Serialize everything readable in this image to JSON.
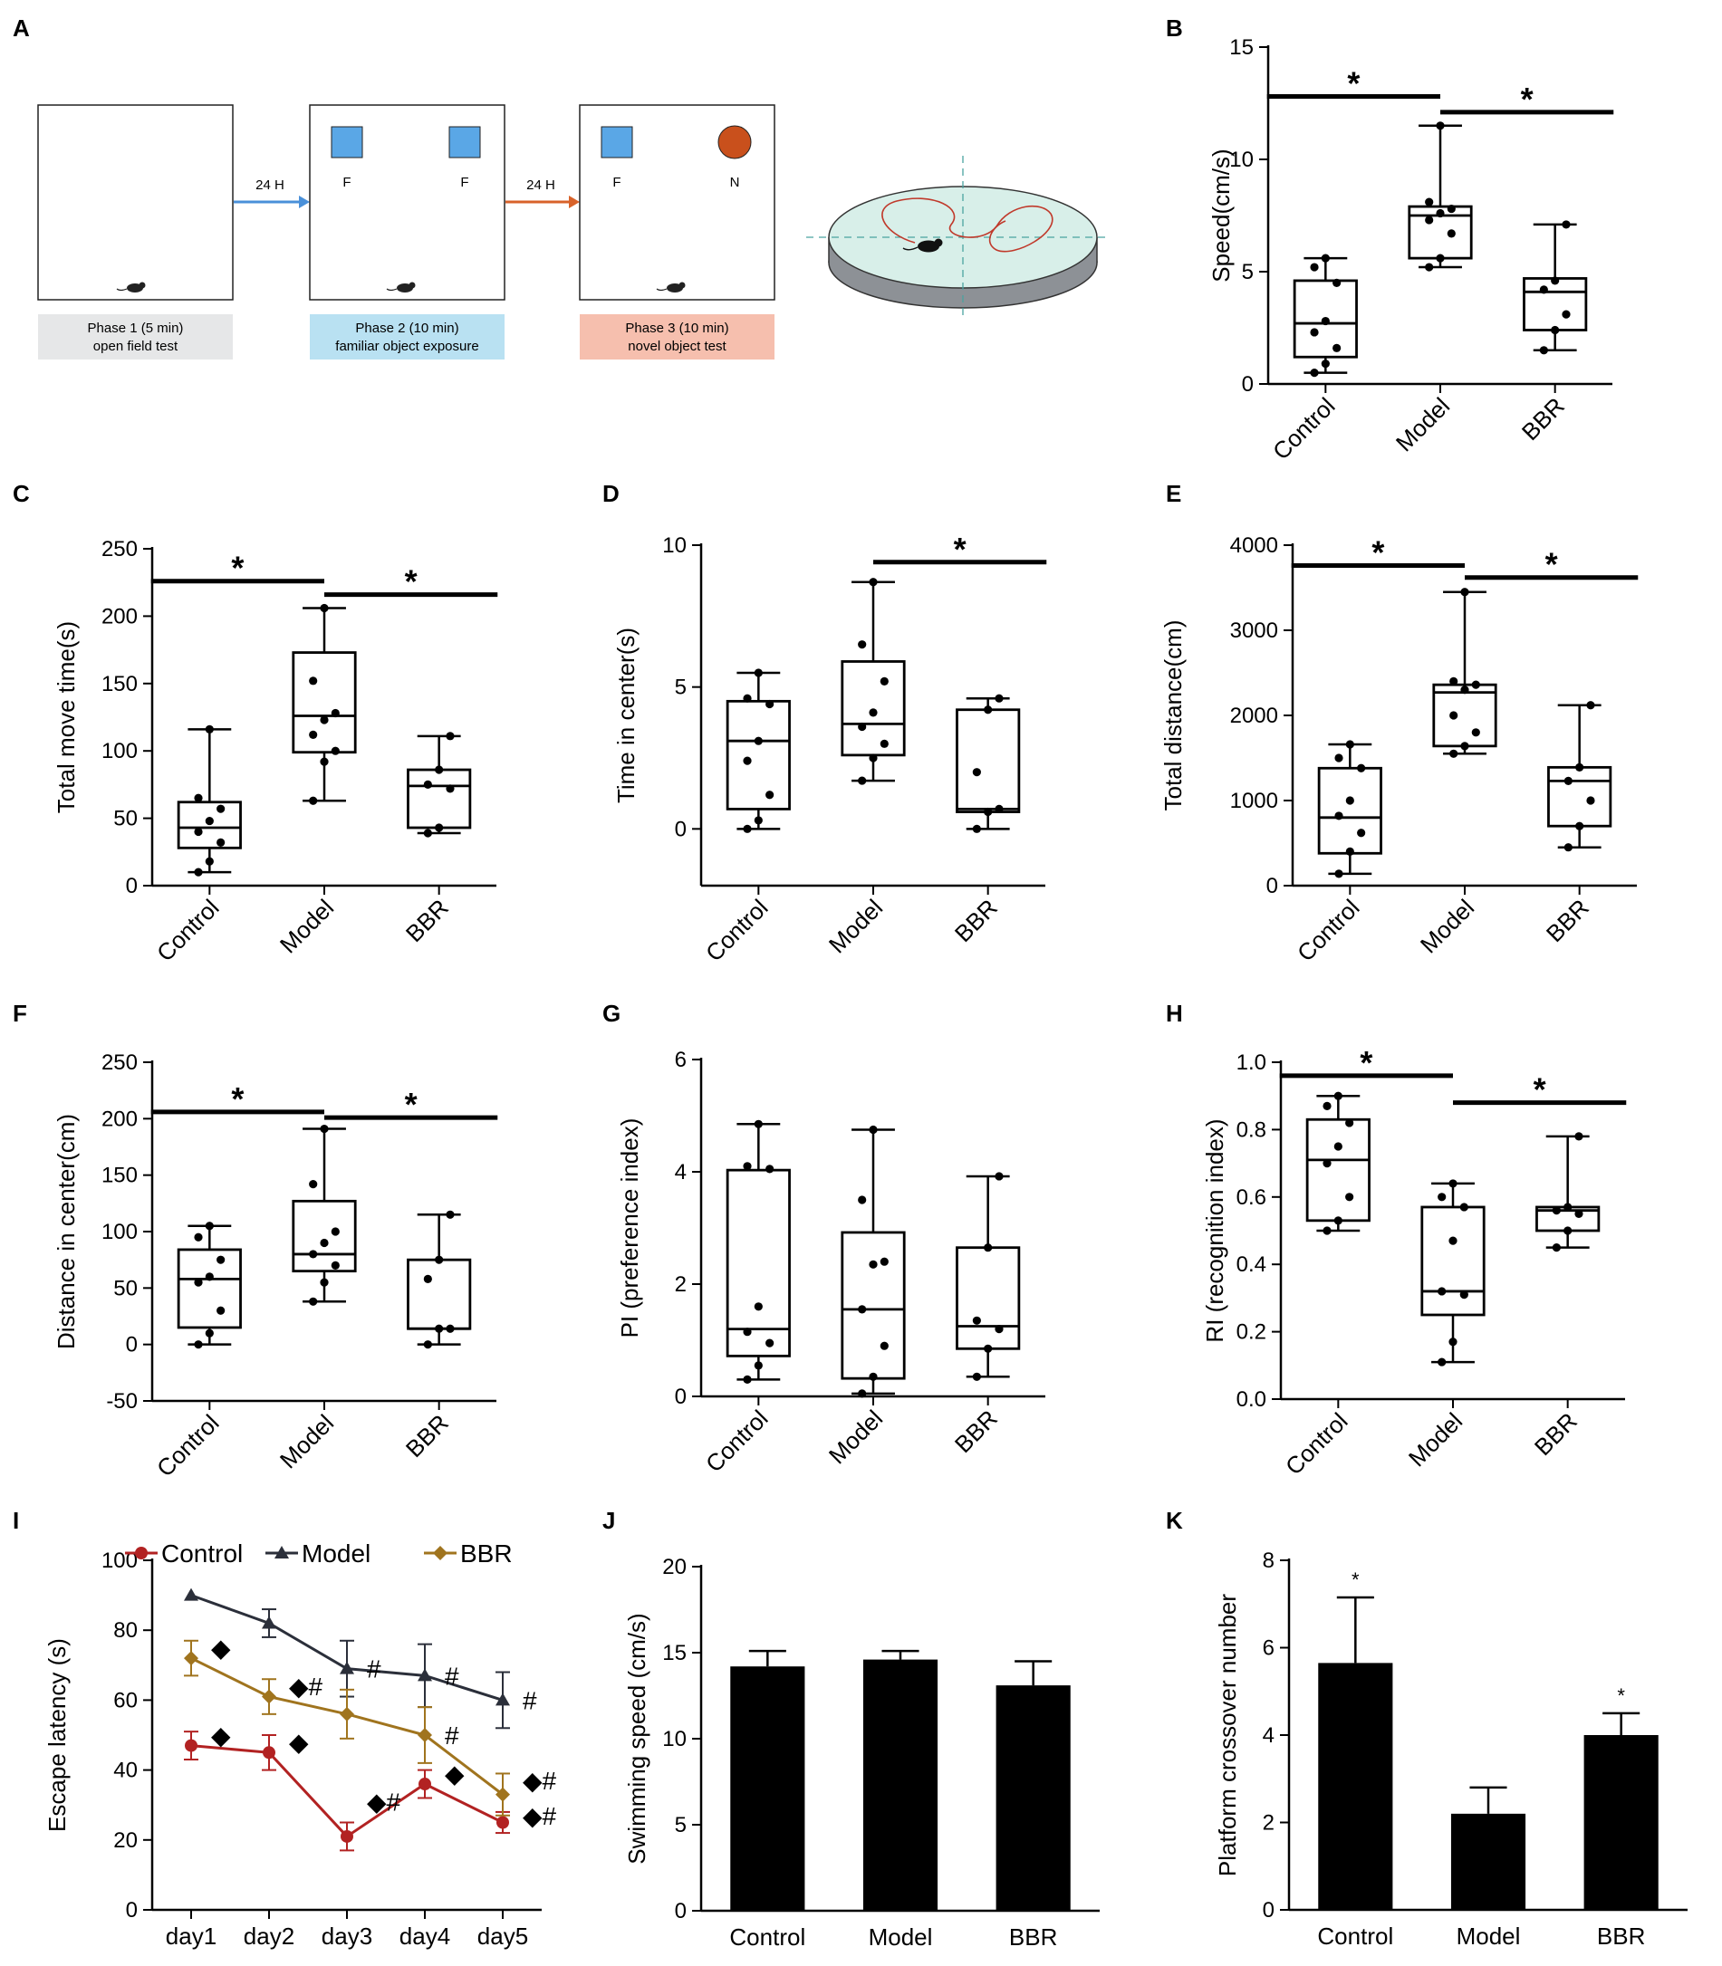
{
  "panel_a": {
    "label": "A",
    "phases": [
      {
        "caption": [
          "Phase 1 (5 min)",
          "open field test"
        ],
        "color": "#e6e7e8",
        "objects": []
      },
      {
        "caption": [
          "Phase 2 (10 min)",
          "familiar object exposure"
        ],
        "color": "#b9e1f2",
        "objects": [
          {
            "shape": "square",
            "label": "F"
          },
          {
            "shape": "square",
            "label": "F"
          }
        ]
      },
      {
        "caption": [
          "Phase 3 (10 min)",
          "novel object test"
        ],
        "color": "#f6bfae",
        "objects": [
          {
            "shape": "square",
            "label": "F"
          },
          {
            "shape": "circle",
            "label": "N"
          }
        ]
      }
    ],
    "arrows": [
      {
        "label": "24 H",
        "color": "#4a90d9"
      },
      {
        "label": "24 H",
        "color": "#d8622a"
      }
    ],
    "colors": {
      "square": "#5aa7e6",
      "circle": "#c9501c"
    }
  },
  "chart_data": [
    {
      "id": "B",
      "label": "B",
      "type": "box",
      "ylabel": "Speed(cm/s)",
      "ylim": [
        0,
        15
      ],
      "yticks": [
        0,
        5,
        10,
        15
      ],
      "categories": [
        "Control",
        "Model",
        "BBR"
      ],
      "boxes": [
        {
          "min": 0.5,
          "q1": 1.2,
          "median": 2.7,
          "q3": 4.6,
          "max": 5.6,
          "points": [
            0.5,
            0.9,
            1.6,
            2.3,
            2.8,
            4.5,
            5.2,
            5.6
          ]
        },
        {
          "min": 5.2,
          "q1": 5.6,
          "median": 7.5,
          "q3": 7.9,
          "max": 11.5,
          "points": [
            5.2,
            5.6,
            6.7,
            7.3,
            7.6,
            7.8,
            8.1,
            11.5
          ]
        },
        {
          "min": 1.5,
          "q1": 2.4,
          "median": 4.1,
          "q3": 4.7,
          "max": 7.1,
          "points": [
            1.5,
            2.4,
            3.1,
            4.2,
            4.6,
            7.1
          ]
        }
      ],
      "sig": [
        {
          "from": 0,
          "to": 1,
          "y": 12.8,
          "label": "*"
        },
        {
          "from": 1,
          "to": 2,
          "y": 12.1,
          "label": "*"
        }
      ]
    },
    {
      "id": "C",
      "label": "C",
      "type": "box",
      "ylabel": "Total move time(s)",
      "ylim": [
        0,
        250
      ],
      "yticks": [
        0,
        50,
        100,
        150,
        200,
        250
      ],
      "categories": [
        "Control",
        "Model",
        "BBR"
      ],
      "boxes": [
        {
          "min": 10,
          "q1": 28,
          "median": 43,
          "q3": 62,
          "max": 116,
          "points": [
            10,
            18,
            32,
            40,
            48,
            57,
            65,
            116
          ]
        },
        {
          "min": 63,
          "q1": 99,
          "median": 126,
          "q3": 173,
          "max": 206,
          "points": [
            63,
            92,
            100,
            112,
            123,
            128,
            152,
            206
          ]
        },
        {
          "min": 39,
          "q1": 43,
          "median": 74,
          "q3": 86,
          "max": 111,
          "points": [
            39,
            43,
            72,
            75,
            86,
            111
          ]
        }
      ],
      "sig": [
        {
          "from": 0,
          "to": 1,
          "y": 226,
          "label": "*"
        },
        {
          "from": 1,
          "to": 2,
          "y": 216,
          "label": "*"
        }
      ]
    },
    {
      "id": "D",
      "label": "D",
      "type": "box",
      "ylabel": "Time in center(s)",
      "ylim": [
        -2,
        10
      ],
      "yticks": [
        0,
        5,
        10
      ],
      "categories": [
        "Control",
        "Model",
        "BBR"
      ],
      "boxes": [
        {
          "min": 0,
          "q1": 0.7,
          "median": 3.1,
          "q3": 4.5,
          "max": 5.5,
          "points": [
            0,
            0.3,
            1.2,
            2.4,
            3.1,
            4.4,
            4.6,
            5.5
          ]
        },
        {
          "min": 1.7,
          "q1": 2.6,
          "median": 3.7,
          "q3": 5.9,
          "max": 8.7,
          "points": [
            1.7,
            2.5,
            3.0,
            3.6,
            4.1,
            5.2,
            6.5,
            8.7
          ]
        },
        {
          "min": 0,
          "q1": 0.6,
          "median": 0.7,
          "q3": 4.2,
          "max": 4.6,
          "points": [
            0,
            0.6,
            0.7,
            2.0,
            4.2,
            4.6
          ]
        }
      ],
      "sig": [
        {
          "from": 1,
          "to": 2,
          "y": 9.4,
          "label": "*"
        }
      ]
    },
    {
      "id": "E",
      "label": "E",
      "type": "box",
      "ylabel": "Total distance(cm)",
      "ylim": [
        0,
        4000
      ],
      "yticks": [
        0,
        1000,
        2000,
        3000,
        4000
      ],
      "categories": [
        "Control",
        "Model",
        "BBR"
      ],
      "boxes": [
        {
          "min": 140,
          "q1": 380,
          "median": 800,
          "q3": 1380,
          "max": 1660,
          "points": [
            140,
            400,
            620,
            820,
            1000,
            1380,
            1500,
            1660
          ]
        },
        {
          "min": 1550,
          "q1": 1640,
          "median": 2270,
          "q3": 2360,
          "max": 3450,
          "points": [
            1550,
            1640,
            1800,
            2000,
            2300,
            2360,
            2400,
            3450
          ]
        },
        {
          "min": 450,
          "q1": 700,
          "median": 1230,
          "q3": 1390,
          "max": 2120,
          "points": [
            450,
            700,
            1000,
            1230,
            1390,
            2120
          ]
        }
      ],
      "sig": [
        {
          "from": 0,
          "to": 1,
          "y": 3760,
          "label": "*"
        },
        {
          "from": 1,
          "to": 2,
          "y": 3620,
          "label": "*"
        }
      ]
    },
    {
      "id": "F",
      "label": "F",
      "type": "box",
      "ylabel": "Distance in center(cm)",
      "ylim": [
        -50,
        250
      ],
      "yticks": [
        -50,
        0,
        50,
        100,
        150,
        200,
        250
      ],
      "categories": [
        "Control",
        "Model",
        "BBR"
      ],
      "boxes": [
        {
          "min": 0,
          "q1": 15,
          "median": 58,
          "q3": 84,
          "max": 105,
          "points": [
            0,
            10,
            30,
            55,
            60,
            75,
            95,
            105
          ]
        },
        {
          "min": 38,
          "q1": 65,
          "median": 80,
          "q3": 127,
          "max": 191,
          "points": [
            38,
            55,
            70,
            80,
            90,
            100,
            142,
            191
          ]
        },
        {
          "min": 0,
          "q1": 14,
          "median": 14,
          "q3": 75,
          "max": 115,
          "points": [
            0,
            14,
            14,
            58,
            75,
            115
          ]
        }
      ],
      "sig": [
        {
          "from": 0,
          "to": 1,
          "y": 206,
          "label": "*"
        },
        {
          "from": 1,
          "to": 2,
          "y": 201,
          "label": "*"
        }
      ]
    },
    {
      "id": "G",
      "label": "G",
      "type": "box",
      "ylabel": "PI (preference index)",
      "ylim": [
        0,
        6
      ],
      "yticks": [
        0,
        2,
        4,
        6
      ],
      "categories": [
        "Control",
        "Model",
        "BBR"
      ],
      "boxes": [
        {
          "min": 0.3,
          "q1": 0.72,
          "median": 1.2,
          "q3": 4.03,
          "max": 4.85,
          "points": [
            0.3,
            0.55,
            0.95,
            1.15,
            1.6,
            4.05,
            4.1,
            4.85
          ]
        },
        {
          "min": 0.05,
          "q1": 0.32,
          "median": 1.55,
          "q3": 2.92,
          "max": 4.75,
          "points": [
            0.05,
            0.35,
            0.9,
            1.55,
            2.35,
            2.4,
            3.5,
            4.75
          ]
        },
        {
          "min": 0.35,
          "q1": 0.85,
          "median": 1.25,
          "q3": 2.65,
          "max": 3.92,
          "points": [
            0.35,
            0.85,
            1.2,
            1.35,
            2.65,
            3.92
          ]
        }
      ],
      "sig": []
    },
    {
      "id": "H",
      "label": "H",
      "type": "box",
      "ylabel": "RI (recognition index)",
      "ylim": [
        0,
        1.0
      ],
      "yticks": [
        0.0,
        0.2,
        0.4,
        0.6,
        0.8,
        1.0
      ],
      "ytick_format": "fixed1",
      "categories": [
        "Control",
        "Model",
        "BBR"
      ],
      "boxes": [
        {
          "min": 0.5,
          "q1": 0.53,
          "median": 0.71,
          "q3": 0.83,
          "max": 0.9,
          "points": [
            0.5,
            0.53,
            0.6,
            0.7,
            0.75,
            0.82,
            0.87,
            0.9
          ]
        },
        {
          "min": 0.11,
          "q1": 0.25,
          "median": 0.32,
          "q3": 0.57,
          "max": 0.64,
          "points": [
            0.11,
            0.17,
            0.31,
            0.32,
            0.47,
            0.57,
            0.6,
            0.64
          ]
        },
        {
          "min": 0.45,
          "q1": 0.5,
          "median": 0.56,
          "q3": 0.57,
          "max": 0.78,
          "points": [
            0.45,
            0.5,
            0.55,
            0.56,
            0.57,
            0.78
          ]
        }
      ],
      "sig": [
        {
          "from": 0,
          "to": 1,
          "y": 0.96,
          "label": "*"
        },
        {
          "from": 1,
          "to": 2,
          "y": 0.88,
          "label": "*"
        }
      ]
    },
    {
      "id": "I",
      "label": "I",
      "type": "line",
      "ylabel": "Escape latency (s)",
      "ylim": [
        0,
        100
      ],
      "yticks": [
        0,
        20,
        40,
        60,
        80,
        100
      ],
      "x": [
        "day1",
        "day2",
        "day3",
        "day4",
        "day5"
      ],
      "series": [
        {
          "name": "Control",
          "color": "#b22222",
          "marker": "circle",
          "values": [
            47,
            45,
            21,
            36,
            25
          ],
          "errors": [
            4,
            5,
            4,
            4,
            3
          ]
        },
        {
          "name": "Model",
          "color": "#2b2f3a",
          "marker": "triangle",
          "values": [
            90,
            82,
            69,
            67,
            60
          ],
          "errors": [
            0,
            4,
            8,
            9,
            8
          ]
        },
        {
          "name": "BBR",
          "color": "#a0741e",
          "marker": "diamond",
          "values": [
            72,
            61,
            56,
            50,
            33
          ],
          "errors": [
            5,
            5,
            7,
            8,
            6
          ]
        }
      ],
      "annotations": [
        {
          "xi": 0,
          "y": 75,
          "text": "◆"
        },
        {
          "xi": 0,
          "y": 50,
          "text": "◆"
        },
        {
          "xi": 1,
          "y": 64,
          "text": "◆#"
        },
        {
          "xi": 1,
          "y": 48,
          "text": "◆"
        },
        {
          "xi": 2,
          "y": 69,
          "text": "#"
        },
        {
          "xi": 2,
          "y": 31,
          "text": "◆#"
        },
        {
          "xi": 3,
          "y": 67,
          "text": "#"
        },
        {
          "xi": 3,
          "y": 50,
          "text": "#"
        },
        {
          "xi": 3,
          "y": 39,
          "text": "◆"
        },
        {
          "xi": 4,
          "y": 60,
          "text": "#"
        },
        {
          "xi": 4,
          "y": 37,
          "text": "◆#"
        },
        {
          "xi": 4,
          "y": 27,
          "text": "◆#"
        }
      ]
    },
    {
      "id": "J",
      "label": "J",
      "type": "bar",
      "ylabel": "Swimming speed (cm/s)",
      "ylim": [
        0,
        20
      ],
      "yticks": [
        0,
        5,
        10,
        15,
        20
      ],
      "categories": [
        "Control",
        "Model",
        "BBR"
      ],
      "values": [
        14.2,
        14.6,
        13.1
      ],
      "errors": [
        0.9,
        0.5,
        1.4
      ],
      "marks": [
        "",
        "",
        ""
      ]
    },
    {
      "id": "K",
      "label": "K",
      "type": "bar",
      "ylabel": "Platform crossover number",
      "ylim": [
        0,
        8
      ],
      "yticks": [
        0,
        2,
        4,
        6,
        8
      ],
      "categories": [
        "Control",
        "Model",
        "BBR"
      ],
      "values": [
        5.65,
        2.2,
        4.0
      ],
      "errors": [
        1.5,
        0.6,
        0.5
      ],
      "marks": [
        "*",
        "",
        "*"
      ]
    }
  ]
}
